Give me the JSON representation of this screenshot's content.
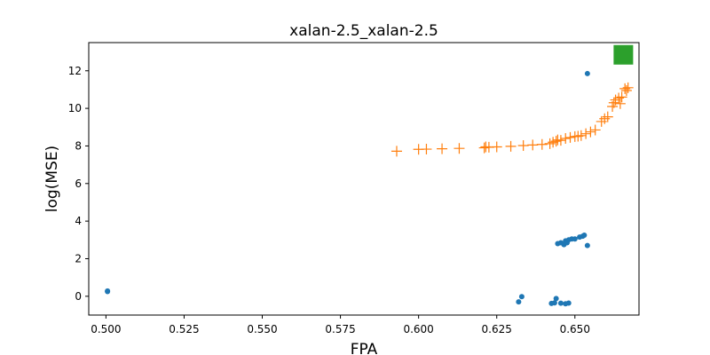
{
  "chart_data": {
    "type": "scatter",
    "title": "xalan-2.5_xalan-2.5",
    "xlabel": "FPA",
    "ylabel": "log(MSE)",
    "xlim": [
      0.4945,
      0.6705
    ],
    "ylim": [
      -1.0,
      13.5
    ],
    "xticks": [
      "0.500",
      "0.525",
      "0.550",
      "0.575",
      "0.600",
      "0.625",
      "0.650"
    ],
    "yticks": [
      "0",
      "2",
      "4",
      "6",
      "8",
      "10",
      "12"
    ],
    "grid": false,
    "legend": false,
    "series": [
      {
        "marker": "circle",
        "color": "#1f77b4",
        "points": [
          [
            0.5005,
            0.28
          ],
          [
            0.5005,
            0.25
          ],
          [
            0.632,
            -0.3
          ],
          [
            0.633,
            -0.02
          ],
          [
            0.6425,
            -0.38
          ],
          [
            0.6435,
            -0.35
          ],
          [
            0.644,
            -0.12
          ],
          [
            0.6455,
            -0.37
          ],
          [
            0.647,
            -0.4
          ],
          [
            0.648,
            -0.36
          ],
          [
            0.6445,
            2.8
          ],
          [
            0.6455,
            2.85
          ],
          [
            0.6465,
            2.75
          ],
          [
            0.647,
            2.95
          ],
          [
            0.6475,
            2.85
          ],
          [
            0.648,
            3.0
          ],
          [
            0.649,
            3.05
          ],
          [
            0.65,
            3.05
          ],
          [
            0.6515,
            3.15
          ],
          [
            0.6525,
            3.2
          ],
          [
            0.653,
            3.25
          ],
          [
            0.654,
            2.7
          ],
          [
            0.654,
            11.85
          ]
        ]
      },
      {
        "marker": "plus",
        "color": "#ff7f0e",
        "points": [
          [
            0.593,
            7.72
          ],
          [
            0.6,
            7.82
          ],
          [
            0.6025,
            7.83
          ],
          [
            0.6075,
            7.85
          ],
          [
            0.613,
            7.87
          ],
          [
            0.621,
            7.9
          ],
          [
            0.6215,
            7.95
          ],
          [
            0.6225,
            7.93
          ],
          [
            0.625,
            7.95
          ],
          [
            0.6295,
            7.98
          ],
          [
            0.6335,
            8.02
          ],
          [
            0.6365,
            8.05
          ],
          [
            0.6395,
            8.08
          ],
          [
            0.642,
            8.12
          ],
          [
            0.643,
            8.2
          ],
          [
            0.644,
            8.25
          ],
          [
            0.6445,
            8.32
          ],
          [
            0.6455,
            8.3
          ],
          [
            0.647,
            8.4
          ],
          [
            0.6485,
            8.45
          ],
          [
            0.65,
            8.5
          ],
          [
            0.651,
            8.52
          ],
          [
            0.652,
            8.55
          ],
          [
            0.6535,
            8.65
          ],
          [
            0.655,
            8.75
          ],
          [
            0.6565,
            8.85
          ],
          [
            0.6585,
            9.3
          ],
          [
            0.6595,
            9.45
          ],
          [
            0.6605,
            9.55
          ],
          [
            0.662,
            10.1
          ],
          [
            0.6625,
            10.3
          ],
          [
            0.663,
            10.45
          ],
          [
            0.664,
            10.55
          ],
          [
            0.6645,
            10.25
          ],
          [
            0.665,
            10.6
          ],
          [
            0.666,
            11.05
          ],
          [
            0.6665,
            10.95
          ],
          [
            0.667,
            11.1
          ]
        ]
      },
      {
        "marker": "square",
        "color": "#2ca02c",
        "points": [
          [
            0.6655,
            12.85
          ]
        ]
      }
    ]
  }
}
